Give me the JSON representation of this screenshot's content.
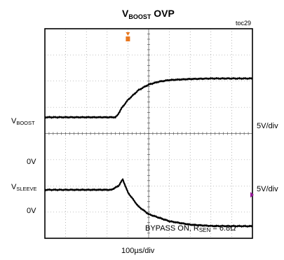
{
  "chart_data": {
    "type": "line",
    "title": {
      "main": "V",
      "sub": "BOOST",
      "rest": " OVP"
    },
    "tag": "toc29",
    "time_scale": "100µs/div",
    "grid": {
      "h_divisions": 8,
      "v_divisions": 10
    },
    "channels": [
      {
        "label": {
          "main": "V",
          "sub": "BOOST"
        },
        "scale": "5V/div",
        "t_div": [
          0,
          3.4,
          3.5,
          3.7,
          4.0,
          4.5,
          5.0,
          5.5,
          6.0,
          7.0,
          8.0,
          10.0
        ],
        "pos_div": [
          4.62,
          4.62,
          4.7,
          4.97,
          5.28,
          5.65,
          5.87,
          5.98,
          6.04,
          6.08,
          6.1,
          6.1
        ]
      },
      {
        "label": {
          "main": "V",
          "sub": "SLEEVE"
        },
        "zero_label": "0V",
        "scale": "5V/div",
        "t_div": [
          0,
          3.2,
          3.55,
          3.75,
          4.0,
          4.5,
          5.0,
          6.0,
          7.0,
          8.0,
          10.0
        ],
        "pos_div": [
          1.85,
          1.85,
          2.0,
          2.25,
          1.75,
          1.22,
          0.92,
          0.65,
          0.52,
          0.47,
          0.46
        ]
      }
    ],
    "zero_labels": [
      "0V",
      "0V"
    ],
    "annotation": {
      "main": "BYPASS ON, R",
      "sub": "SEN",
      "rest": " = 6.8Ω"
    },
    "colors": {
      "trace": "#000000",
      "trigger": "#e8771e",
      "marker": "#9b1c9b",
      "grid": "#888888"
    }
  }
}
